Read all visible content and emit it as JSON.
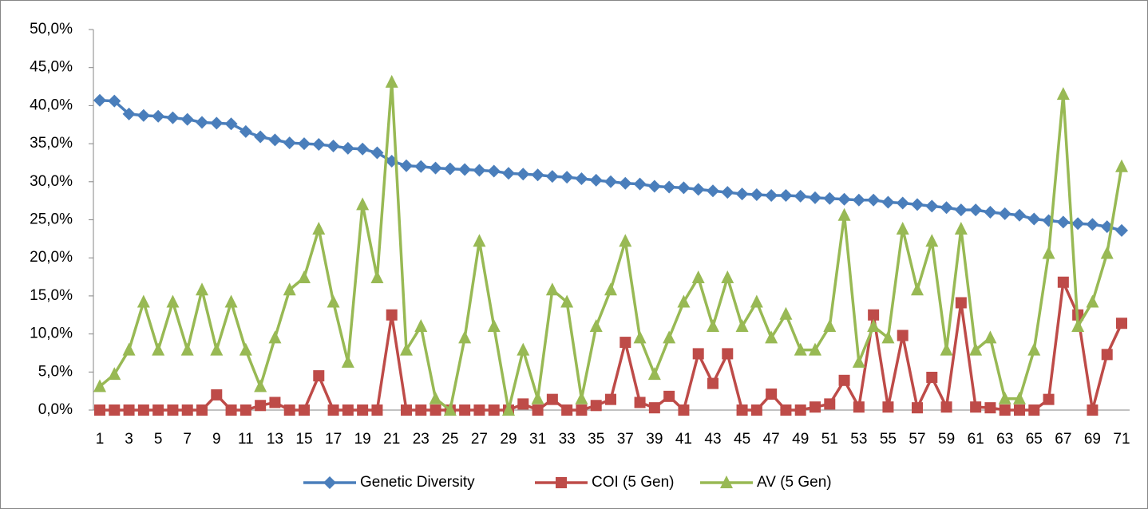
{
  "chart_data": {
    "type": "line",
    "categories": [
      1,
      null,
      3,
      null,
      5,
      null,
      7,
      null,
      9,
      null,
      11,
      null,
      13,
      null,
      15,
      null,
      17,
      null,
      19,
      null,
      21,
      null,
      23,
      null,
      25,
      null,
      27,
      null,
      29,
      null,
      31,
      null,
      33,
      null,
      35,
      null,
      37,
      null,
      39,
      null,
      41,
      null,
      43,
      null,
      45,
      null,
      47,
      null,
      49,
      null,
      51,
      null,
      53,
      null,
      55,
      null,
      57,
      null,
      59,
      null,
      61,
      null,
      63,
      null,
      65,
      null,
      67,
      null,
      69,
      null,
      71
    ],
    "series": [
      {
        "name": "Genetic Diversity",
        "color": "#4a7ebb",
        "marker": "diamond",
        "values": [
          40.7,
          40.6,
          38.9,
          38.7,
          38.6,
          38.4,
          38.2,
          37.8,
          37.7,
          37.6,
          36.6,
          35.9,
          35.5,
          35.1,
          35.0,
          34.9,
          34.7,
          34.4,
          34.3,
          33.8,
          32.7,
          32.1,
          32.0,
          31.8,
          31.7,
          31.6,
          31.5,
          31.4,
          31.1,
          31.0,
          30.9,
          30.7,
          30.6,
          30.4,
          30.2,
          30.0,
          29.8,
          29.7,
          29.4,
          29.3,
          29.2,
          29.0,
          28.8,
          28.6,
          28.4,
          28.3,
          28.2,
          28.2,
          28.1,
          27.9,
          27.8,
          27.7,
          27.6,
          27.6,
          27.3,
          27.2,
          27.0,
          26.8,
          26.6,
          26.3,
          26.3,
          26.0,
          25.8,
          25.6,
          25.1,
          24.9,
          24.7,
          24.5,
          24.4,
          24.1,
          23.6
        ]
      },
      {
        "name": "COI (5 Gen)",
        "color": "#be4b48",
        "marker": "square",
        "values": [
          0,
          0,
          0,
          0,
          0,
          0,
          0,
          0,
          2.0,
          0,
          0,
          0.6,
          1.0,
          0,
          0,
          4.5,
          0,
          0,
          0,
          0,
          12.5,
          0,
          0,
          0,
          0,
          0,
          0,
          0,
          0,
          0.8,
          0,
          1.4,
          0,
          0,
          0.6,
          1.4,
          8.9,
          1.0,
          0.3,
          1.8,
          0,
          7.4,
          3.5,
          7.4,
          0,
          0,
          2.1,
          0,
          0,
          0.4,
          0.8,
          3.9,
          0.4,
          12.5,
          0.4,
          9.8,
          0.3,
          4.3,
          0.4,
          14.1,
          0.4,
          0.3,
          0,
          0,
          0,
          1.4,
          16.8,
          12.5,
          0,
          7.3,
          11.4
        ]
      },
      {
        "name": "AV (5 Gen)",
        "color": "#98b954",
        "marker": "triangle",
        "values": [
          3.1,
          4.7,
          7.9,
          14.2,
          7.9,
          14.2,
          7.9,
          15.8,
          7.9,
          14.2,
          7.9,
          3.1,
          9.5,
          15.8,
          17.4,
          23.8,
          14.2,
          6.3,
          27.0,
          17.4,
          43.1,
          7.9,
          11.0,
          1.5,
          0,
          9.5,
          22.2,
          11.0,
          0,
          7.9,
          1.5,
          15.8,
          14.2,
          1.5,
          11.0,
          15.8,
          22.2,
          9.5,
          4.7,
          9.5,
          14.2,
          17.4,
          11.0,
          17.4,
          11.0,
          14.2,
          9.5,
          12.6,
          7.9,
          7.9,
          11.0,
          25.6,
          6.3,
          11.0,
          9.5,
          23.8,
          15.8,
          22.2,
          7.9,
          23.8,
          7.9,
          9.5,
          1.5,
          1.5,
          7.9,
          20.6,
          41.5,
          11.0,
          14.2,
          20.6,
          32.0
        ]
      }
    ],
    "ylim": [
      0,
      50
    ],
    "yticks": [
      {
        "value": 0,
        "label": "0,0%"
      },
      {
        "value": 5,
        "label": "5,0%"
      },
      {
        "value": 10,
        "label": "10,0%"
      },
      {
        "value": 15,
        "label": "15,0%"
      },
      {
        "value": 20,
        "label": "20,0%"
      },
      {
        "value": 25,
        "label": "25,0%"
      },
      {
        "value": 30,
        "label": "30,0%"
      },
      {
        "value": 35,
        "label": "35,0%"
      },
      {
        "value": 40,
        "label": "40,0%"
      },
      {
        "value": 45,
        "label": "45,0%"
      },
      {
        "value": 50,
        "label": "50,0%"
      }
    ],
    "grid": false,
    "legend": "bottom"
  }
}
